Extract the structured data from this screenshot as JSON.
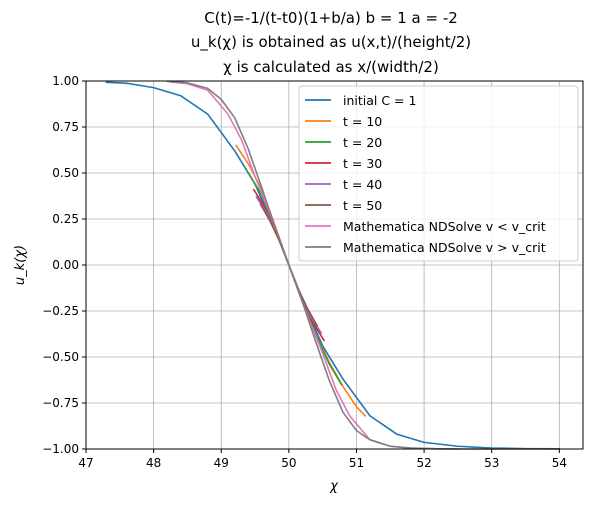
{
  "chart_data": {
    "type": "line",
    "title_lines": [
      "C(t)=-1/(t-t0)(1+b/a) b = 1 a = -2",
      "u_k(χ) is obtained as u(x,t)/(height/2)",
      "χ is calculated as x/(width/2)"
    ],
    "xlabel": "χ",
    "ylabel": "u_k(χ)",
    "xlim": [
      47,
      54.35
    ],
    "ylim": [
      -1.0,
      1.0
    ],
    "x_ticks": [
      47,
      48,
      49,
      50,
      51,
      52,
      53,
      54
    ],
    "y_ticks": [
      1.0,
      0.75,
      0.5,
      0.25,
      0.0,
      -0.25,
      -0.5,
      -0.75,
      -1.0
    ],
    "x_tick_labels": [
      "47",
      "48",
      "49",
      "50",
      "51",
      "52",
      "53",
      "54"
    ],
    "y_tick_labels": [
      "1.00",
      "0.75",
      "0.50",
      "0.25",
      "0.00",
      "−0.25",
      "−0.50",
      "−0.75",
      "−1.00"
    ],
    "grid": true,
    "legend_position": "top-right",
    "series": [
      {
        "name": "initial C = 1",
        "color": "#1f77b4",
        "x": [
          47.3,
          47.6,
          48.0,
          48.4,
          48.8,
          49.2,
          49.5,
          49.8,
          50.0,
          50.2,
          50.5,
          50.8,
          51.2,
          51.6,
          52.0,
          52.5,
          53.0,
          53.5,
          54.0
        ],
        "y": [
          0.993,
          0.988,
          0.964,
          0.92,
          0.82,
          0.62,
          0.44,
          0.19,
          0.0,
          -0.19,
          -0.44,
          -0.62,
          -0.82,
          -0.92,
          -0.964,
          -0.985,
          -0.995,
          -0.998,
          -0.999
        ]
      },
      {
        "name": "t = 10",
        "color": "#ff7f0e",
        "x": [
          49.22,
          49.4,
          49.6,
          49.8,
          50.0,
          50.2,
          50.4,
          50.6,
          50.8,
          51.0,
          51.13
        ],
        "y": [
          0.65,
          0.55,
          0.41,
          0.21,
          0.0,
          -0.2,
          -0.38,
          -0.53,
          -0.66,
          -0.77,
          -0.82
        ]
      },
      {
        "name": "t = 20",
        "color": "#2ca02c",
        "x": [
          49.4,
          49.6,
          49.8,
          50.0,
          50.2,
          50.4,
          50.6,
          50.78
        ],
        "y": [
          0.5,
          0.38,
          0.2,
          0.0,
          -0.2,
          -0.38,
          -0.54,
          -0.65
        ]
      },
      {
        "name": "t = 30",
        "color": "#d62728",
        "x": [
          49.48,
          49.65,
          49.82,
          50.0,
          50.18,
          50.35,
          50.52
        ],
        "y": [
          0.41,
          0.31,
          0.17,
          0.0,
          -0.17,
          -0.31,
          -0.41
        ]
      },
      {
        "name": "t = 40",
        "color": "#9467bd",
        "x": [
          49.52,
          49.68,
          49.84,
          50.0,
          50.16,
          50.32,
          50.48
        ],
        "y": [
          0.37,
          0.28,
          0.15,
          0.0,
          -0.15,
          -0.28,
          -0.37
        ]
      },
      {
        "name": "t = 50",
        "color": "#8c564b",
        "x": [
          49.58,
          49.72,
          49.86,
          50.0,
          50.14,
          50.28,
          50.42
        ],
        "y": [
          0.33,
          0.24,
          0.13,
          0.0,
          -0.13,
          -0.24,
          -0.33
        ]
      },
      {
        "name": "Mathematica NDSolve v < v_crit",
        "color": "#e377c2",
        "x": [
          48.25,
          48.5,
          48.8,
          49.1,
          49.3,
          49.5,
          49.7,
          49.85,
          50.0,
          50.15,
          50.3,
          50.5,
          50.7,
          50.9,
          51.2,
          51.5,
          51.8,
          52.2,
          52.5
        ],
        "y": [
          0.995,
          0.985,
          0.95,
          0.82,
          0.68,
          0.48,
          0.3,
          0.15,
          0.0,
          -0.15,
          -0.3,
          -0.48,
          -0.68,
          -0.82,
          -0.95,
          -0.985,
          -0.995,
          -0.999,
          -1.0
        ]
      },
      {
        "name": "Mathematica NDSolve v > v_crit",
        "color": "#7f7f7f",
        "x": [
          48.2,
          48.5,
          48.8,
          49.0,
          49.2,
          49.4,
          49.6,
          49.8,
          50.0,
          50.2,
          50.4,
          50.6,
          50.8,
          51.0,
          51.2,
          51.5,
          51.8,
          52.2,
          52.6,
          53.0,
          53.5,
          54.0
        ],
        "y": [
          0.998,
          0.99,
          0.96,
          0.9,
          0.8,
          0.63,
          0.42,
          0.2,
          0.0,
          -0.2,
          -0.42,
          -0.63,
          -0.8,
          -0.9,
          -0.95,
          -0.985,
          -0.995,
          -0.999,
          -1.0,
          -1.0,
          -1.0,
          -1.0
        ]
      }
    ]
  }
}
